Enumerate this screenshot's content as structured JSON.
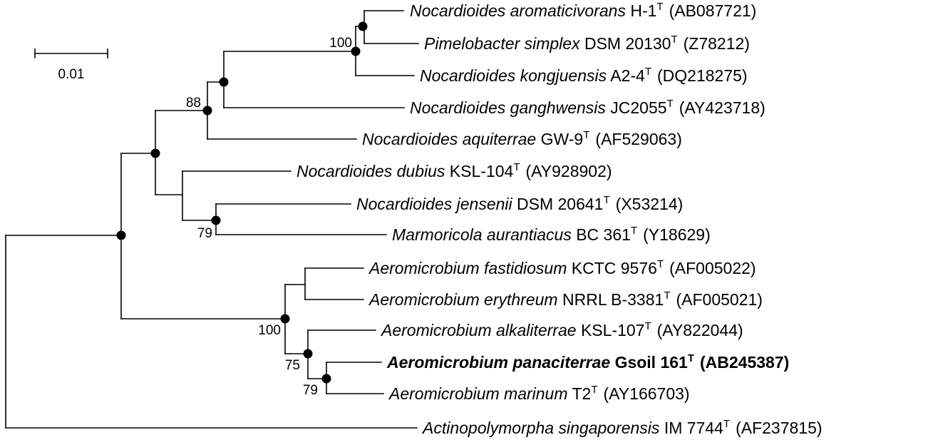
{
  "scale_bar": {
    "label": "0.01"
  },
  "taxa": [
    {
      "id": "t1",
      "genus_species": "Nocardioides aromaticivorans",
      "strain": "H-1",
      "superscript": "T",
      "accession": "(AB087721)",
      "bold": false
    },
    {
      "id": "t2",
      "genus_species": "Pimelobacter simplex",
      "strain": "DSM 20130",
      "superscript": "T",
      "accession": "(Z78212)",
      "bold": false
    },
    {
      "id": "t3",
      "genus_species": "Nocardioides kongjuensis",
      "strain": "A2-4",
      "superscript": "T",
      "accession": "(DQ218275)",
      "bold": false
    },
    {
      "id": "t4",
      "genus_species": "Nocardioides ganghwensis",
      "strain": "JC2055",
      "superscript": "T",
      "accession": "(AY423718)",
      "bold": false
    },
    {
      "id": "t5",
      "genus_species": "Nocardioides aquiterrae",
      "strain": "GW-9",
      "superscript": "T",
      "accession": "(AF529063)",
      "bold": false
    },
    {
      "id": "t6",
      "genus_species": "Nocardioides dubius",
      "strain": "KSL-104",
      "superscript": "T",
      "accession": "(AY928902)",
      "bold": false
    },
    {
      "id": "t7",
      "genus_species": "Nocardioides jensenii",
      "strain": "DSM 20641",
      "superscript": "T",
      "accession": "(X53214)",
      "bold": false
    },
    {
      "id": "t8",
      "genus_species": "Marmoricola aurantiacus",
      "strain": "BC 361",
      "superscript": "T",
      "accession": "(Y18629)",
      "bold": false
    },
    {
      "id": "t9",
      "genus_species": "Aeromicrobium fastidiosum",
      "strain": "KCTC 9576",
      "superscript": "T",
      "accession": "(AF005022)",
      "bold": false
    },
    {
      "id": "t10",
      "genus_species": "Aeromicrobium erythreum",
      "strain": "NRRL B-3381",
      "superscript": "T",
      "accession": "(AF005021)",
      "bold": false
    },
    {
      "id": "t11",
      "genus_species": "Aeromicrobium alkaliterrae",
      "strain": "KSL-107",
      "superscript": "T",
      "accession": "(AY822044)",
      "bold": false
    },
    {
      "id": "t12",
      "genus_species": "Aeromicrobium panaciterrae",
      "strain": "Gsoil 161",
      "superscript": "T",
      "accession": "(AB245387)",
      "bold": true
    },
    {
      "id": "t13",
      "genus_species": "Aeromicrobium marinum",
      "strain": "T2",
      "superscript": "T",
      "accession": "(AY166703)",
      "bold": false
    },
    {
      "id": "t14",
      "genus_species": "Actinopolymorpha singaporensis",
      "strain": "IM 7744",
      "superscript": "T",
      "accession": "(AF237815)",
      "bold": false
    }
  ],
  "bootstrap": {
    "n_aroma_pimelo": "100",
    "n_ganghwensis_group": "88",
    "n_jensenii_marmoricola": "79",
    "n_aeromicrobium": "100",
    "n_alkaliterrae_group": "75",
    "n_panaciterrae_marinum": "79"
  }
}
